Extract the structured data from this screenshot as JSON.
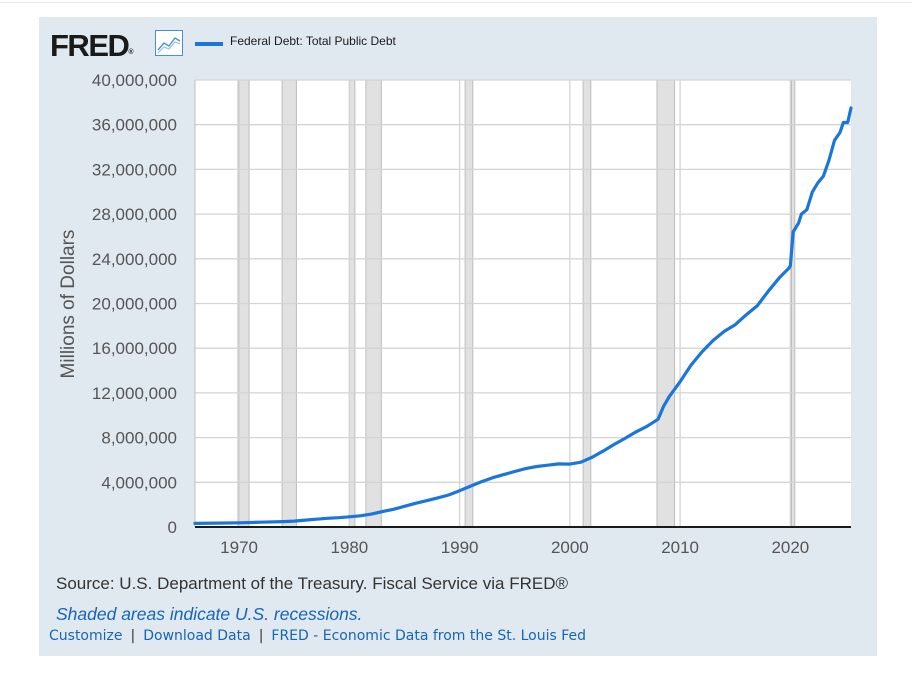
{
  "header": {
    "logo_text": "FRED",
    "logo_mark": "®",
    "logo_icon": "line-chart-icon"
  },
  "legend": {
    "label": "Federal Debt: Total Public Debt",
    "color": "#1a76d8"
  },
  "chart_data": {
    "type": "line",
    "title": "",
    "xlabel": "",
    "ylabel": "Millions of Dollars",
    "xlim": [
      1966,
      2025.5
    ],
    "ylim": [
      0,
      40000000
    ],
    "grid": true,
    "legend_position": "top-left",
    "x_ticks": [
      "1970",
      "1980",
      "1990",
      "2000",
      "2010",
      "2020"
    ],
    "y_ticks": [
      "0",
      "4,000,000",
      "8,000,000",
      "12,000,000",
      "16,000,000",
      "20,000,000",
      "24,000,000",
      "28,000,000",
      "32,000,000",
      "36,000,000",
      "40,000,000"
    ],
    "recessions": [
      [
        1969.9,
        1970.9
      ],
      [
        1973.9,
        1975.2
      ],
      [
        1980.0,
        1980.5
      ],
      [
        1981.5,
        1982.9
      ],
      [
        1990.5,
        1991.2
      ],
      [
        2001.2,
        2001.9
      ],
      [
        2007.9,
        2009.5
      ],
      [
        2020.1,
        2020.4
      ]
    ],
    "series": [
      {
        "name": "Federal Debt: Total Public Debt",
        "color": "#1a76d8",
        "points": [
          [
            1966.0,
            320000
          ],
          [
            1968.0,
            350000
          ],
          [
            1970.0,
            380000
          ],
          [
            1972.0,
            430000
          ],
          [
            1974.0,
            480000
          ],
          [
            1975.0,
            530000
          ],
          [
            1976.0,
            620000
          ],
          [
            1977.0,
            700000
          ],
          [
            1978.0,
            780000
          ],
          [
            1979.0,
            830000
          ],
          [
            1980.0,
            910000
          ],
          [
            1981.0,
            1000000
          ],
          [
            1982.0,
            1150000
          ],
          [
            1983.0,
            1380000
          ],
          [
            1984.0,
            1580000
          ],
          [
            1985.0,
            1850000
          ],
          [
            1986.0,
            2120000
          ],
          [
            1987.0,
            2350000
          ],
          [
            1988.0,
            2600000
          ],
          [
            1989.0,
            2860000
          ],
          [
            1990.0,
            3250000
          ],
          [
            1991.0,
            3660000
          ],
          [
            1992.0,
            4060000
          ],
          [
            1993.0,
            4410000
          ],
          [
            1994.0,
            4690000
          ],
          [
            1995.0,
            4970000
          ],
          [
            1996.0,
            5230000
          ],
          [
            1997.0,
            5410000
          ],
          [
            1998.0,
            5530000
          ],
          [
            1999.0,
            5650000
          ],
          [
            2000.0,
            5630000
          ],
          [
            2001.0,
            5800000
          ],
          [
            2002.0,
            6230000
          ],
          [
            2003.0,
            6780000
          ],
          [
            2004.0,
            7380000
          ],
          [
            2005.0,
            7930000
          ],
          [
            2006.0,
            8510000
          ],
          [
            2007.0,
            9010000
          ],
          [
            2008.0,
            9650000
          ],
          [
            2008.5,
            10800000
          ],
          [
            2009.0,
            11650000
          ],
          [
            2010.0,
            13000000
          ],
          [
            2011.0,
            14500000
          ],
          [
            2012.0,
            15700000
          ],
          [
            2013.0,
            16700000
          ],
          [
            2014.0,
            17500000
          ],
          [
            2015.0,
            18100000
          ],
          [
            2016.0,
            19000000
          ],
          [
            2017.0,
            19800000
          ],
          [
            2018.0,
            21100000
          ],
          [
            2019.0,
            22300000
          ],
          [
            2019.9,
            23200000
          ],
          [
            2020.0,
            23400000
          ],
          [
            2020.25,
            26400000
          ],
          [
            2020.75,
            27200000
          ],
          [
            2021.0,
            28000000
          ],
          [
            2021.5,
            28400000
          ],
          [
            2022.0,
            30000000
          ],
          [
            2022.5,
            30800000
          ],
          [
            2023.0,
            31400000
          ],
          [
            2023.5,
            32800000
          ],
          [
            2024.0,
            34600000
          ],
          [
            2024.5,
            35300000
          ],
          [
            2024.8,
            36200000
          ],
          [
            2025.2,
            36200000
          ],
          [
            2025.5,
            37500000
          ]
        ]
      }
    ]
  },
  "footer": {
    "source": "Source: U.S. Department of the Treasury. Fiscal Service via FRED®",
    "shaded_note": "Shaded areas indicate U.S. recessions.",
    "links": [
      "Customize",
      "Download Data",
      "FRED - Economic Data from the St. Louis Fed"
    ]
  }
}
